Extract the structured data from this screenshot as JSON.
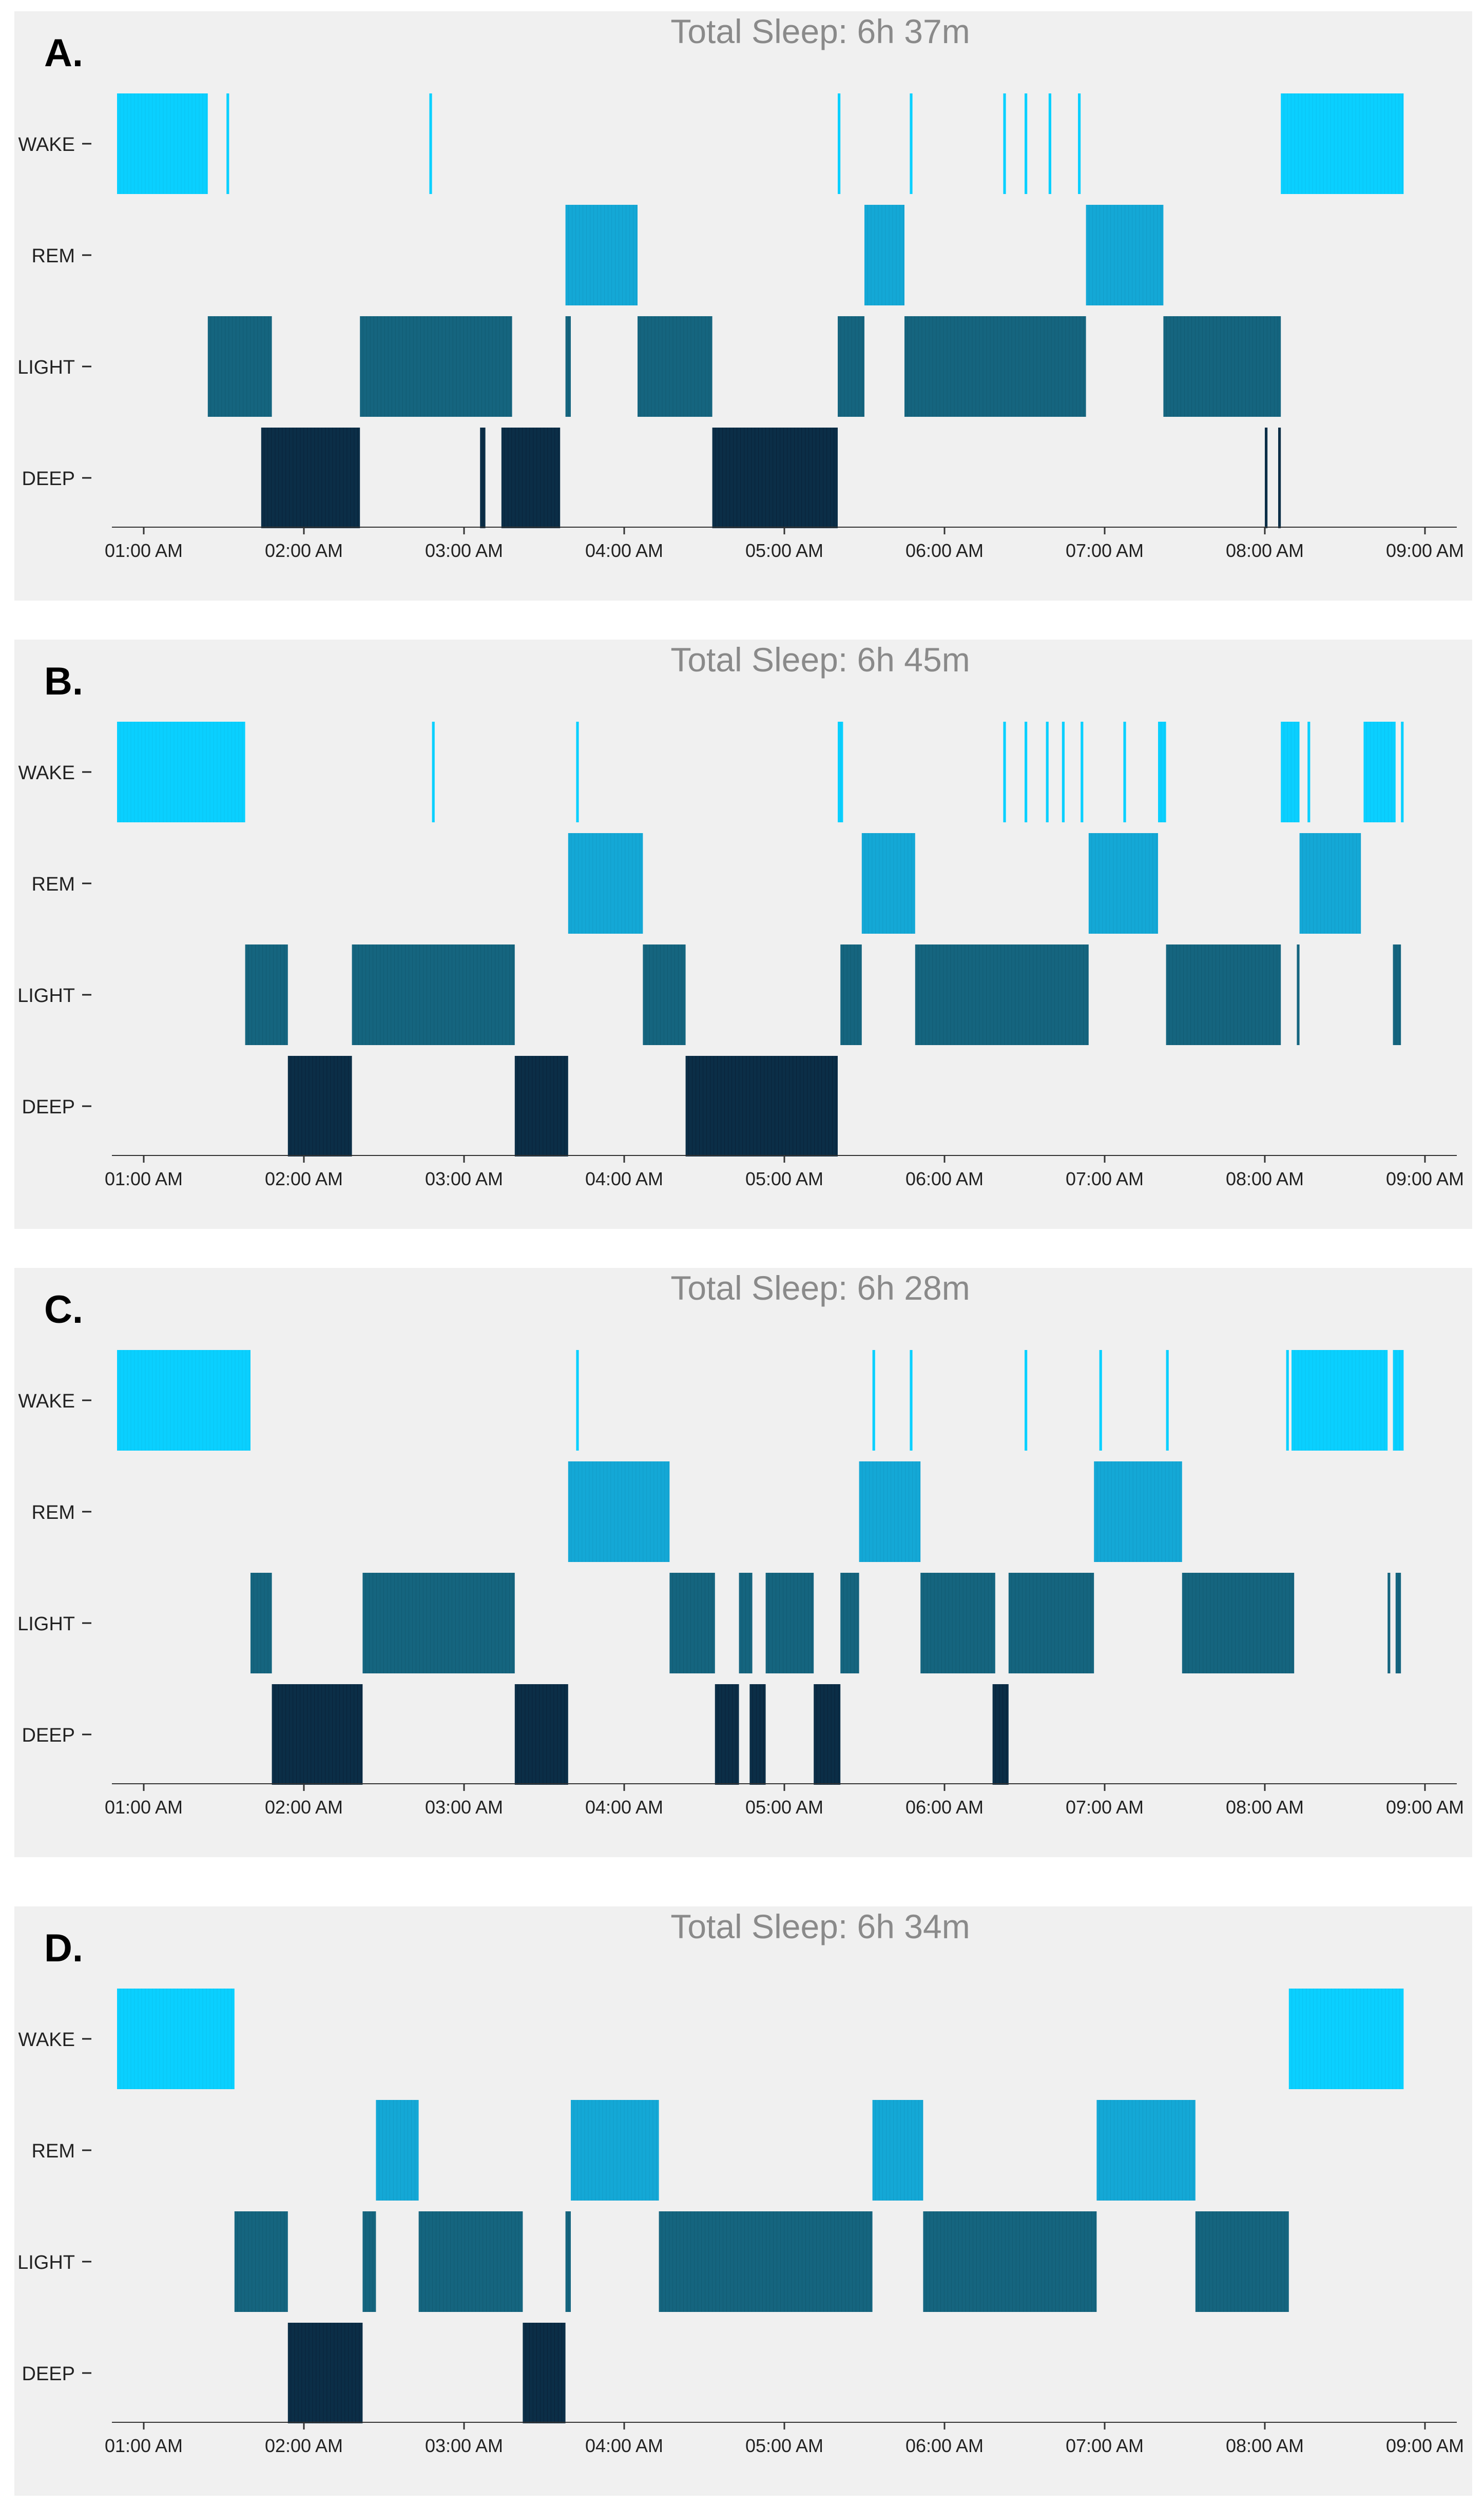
{
  "chart_data": [
    {
      "type": "sleep-hypnogram",
      "panel_label": "A.",
      "title": "Total Sleep: 6h 37m",
      "stages": [
        "WAKE",
        "REM",
        "LIGHT",
        "DEEP"
      ],
      "xticks": [
        "01:00 AM",
        "02:00 AM",
        "03:00 AM",
        "04:00 AM",
        "05:00 AM",
        "06:00 AM",
        "07:00 AM",
        "08:00 AM",
        "09:00 AM"
      ],
      "xlim": [
        "00:50",
        "09:10"
      ],
      "stage_colors": {
        "WAKE": "#0ad0ff",
        "REM": "#14a8d6",
        "LIGHT": "#15657f",
        "DEEP": "#0b2e47"
      },
      "segments": [
        {
          "stage": "WAKE",
          "start": "00:50",
          "end": "01:24"
        },
        {
          "stage": "WAKE",
          "start": "01:31",
          "end": "01:32"
        },
        {
          "stage": "WAKE",
          "start": "02:47",
          "end": "02:48"
        },
        {
          "stage": "WAKE",
          "start": "05:20",
          "end": "05:21"
        },
        {
          "stage": "WAKE",
          "start": "05:47",
          "end": "05:48"
        },
        {
          "stage": "WAKE",
          "start": "06:22",
          "end": "06:23"
        },
        {
          "stage": "WAKE",
          "start": "06:30",
          "end": "06:31"
        },
        {
          "stage": "WAKE",
          "start": "06:39",
          "end": "06:40"
        },
        {
          "stage": "WAKE",
          "start": "06:50",
          "end": "06:51"
        },
        {
          "stage": "WAKE",
          "start": "08:06",
          "end": "08:52"
        },
        {
          "stage": "LIGHT",
          "start": "01:24",
          "end": "01:48"
        },
        {
          "stage": "DEEP",
          "start": "01:44",
          "end": "02:21"
        },
        {
          "stage": "LIGHT",
          "start": "02:21",
          "end": "03:18"
        },
        {
          "stage": "DEEP",
          "start": "03:06",
          "end": "03:08"
        },
        {
          "stage": "DEEP",
          "start": "03:14",
          "end": "03:36"
        },
        {
          "stage": "LIGHT",
          "start": "03:38",
          "end": "03:40"
        },
        {
          "stage": "REM",
          "start": "03:38",
          "end": "04:05"
        },
        {
          "stage": "LIGHT",
          "start": "04:05",
          "end": "04:33"
        },
        {
          "stage": "DEEP",
          "start": "04:33",
          "end": "05:20"
        },
        {
          "stage": "LIGHT",
          "start": "05:20",
          "end": "05:30"
        },
        {
          "stage": "REM",
          "start": "05:30",
          "end": "05:45"
        },
        {
          "stage": "LIGHT",
          "start": "05:45",
          "end": "06:53"
        },
        {
          "stage": "REM",
          "start": "06:53",
          "end": "07:22"
        },
        {
          "stage": "LIGHT",
          "start": "07:22",
          "end": "08:06"
        },
        {
          "stage": "DEEP",
          "start": "08:00",
          "end": "08:01"
        },
        {
          "stage": "DEEP",
          "start": "08:05",
          "end": "08:06"
        }
      ]
    },
    {
      "type": "sleep-hypnogram",
      "panel_label": "B.",
      "title": "Total Sleep: 6h 45m",
      "stages": [
        "WAKE",
        "REM",
        "LIGHT",
        "DEEP"
      ],
      "xticks": [
        "01:00 AM",
        "02:00 AM",
        "03:00 AM",
        "04:00 AM",
        "05:00 AM",
        "06:00 AM",
        "07:00 AM",
        "08:00 AM",
        "09:00 AM"
      ],
      "xlim": [
        "00:50",
        "09:10"
      ],
      "stage_colors": {
        "WAKE": "#0ad0ff",
        "REM": "#14a8d6",
        "LIGHT": "#15657f",
        "DEEP": "#0b2e47"
      },
      "segments": [
        {
          "stage": "WAKE",
          "start": "00:50",
          "end": "01:38"
        },
        {
          "stage": "WAKE",
          "start": "02:48",
          "end": "02:49"
        },
        {
          "stage": "WAKE",
          "start": "03:42",
          "end": "03:43"
        },
        {
          "stage": "WAKE",
          "start": "05:20",
          "end": "05:22"
        },
        {
          "stage": "WAKE",
          "start": "06:22",
          "end": "06:23"
        },
        {
          "stage": "WAKE",
          "start": "06:30",
          "end": "06:31"
        },
        {
          "stage": "WAKE",
          "start": "06:38",
          "end": "06:39"
        },
        {
          "stage": "WAKE",
          "start": "06:44",
          "end": "06:45"
        },
        {
          "stage": "WAKE",
          "start": "06:51",
          "end": "06:52"
        },
        {
          "stage": "WAKE",
          "start": "07:07",
          "end": "07:08"
        },
        {
          "stage": "WAKE",
          "start": "07:20",
          "end": "07:23"
        },
        {
          "stage": "WAKE",
          "start": "08:06",
          "end": "08:13"
        },
        {
          "stage": "WAKE",
          "start": "08:16",
          "end": "08:17"
        },
        {
          "stage": "WAKE",
          "start": "08:37",
          "end": "08:49"
        },
        {
          "stage": "WAKE",
          "start": "08:51",
          "end": "08:52"
        },
        {
          "stage": "LIGHT",
          "start": "01:38",
          "end": "01:54"
        },
        {
          "stage": "DEEP",
          "start": "01:54",
          "end": "02:18"
        },
        {
          "stage": "LIGHT",
          "start": "02:18",
          "end": "03:19"
        },
        {
          "stage": "DEEP",
          "start": "03:19",
          "end": "03:39"
        },
        {
          "stage": "REM",
          "start": "03:39",
          "end": "04:07"
        },
        {
          "stage": "LIGHT",
          "start": "04:07",
          "end": "04:23"
        },
        {
          "stage": "DEEP",
          "start": "04:23",
          "end": "05:20"
        },
        {
          "stage": "LIGHT",
          "start": "05:21",
          "end": "05:29"
        },
        {
          "stage": "REM",
          "start": "05:29",
          "end": "05:49"
        },
        {
          "stage": "LIGHT",
          "start": "05:49",
          "end": "06:54"
        },
        {
          "stage": "REM",
          "start": "06:54",
          "end": "07:20"
        },
        {
          "stage": "LIGHT",
          "start": "07:23",
          "end": "08:06"
        },
        {
          "stage": "LIGHT",
          "start": "08:12",
          "end": "08:13"
        },
        {
          "stage": "REM",
          "start": "08:13",
          "end": "08:36"
        },
        {
          "stage": "LIGHT",
          "start": "08:48",
          "end": "08:51"
        }
      ]
    },
    {
      "type": "sleep-hypnogram",
      "panel_label": "C.",
      "title": "Total Sleep: 6h 28m",
      "stages": [
        "WAKE",
        "REM",
        "LIGHT",
        "DEEP"
      ],
      "xticks": [
        "01:00 AM",
        "02:00 AM",
        "03:00 AM",
        "04:00 AM",
        "05:00 AM",
        "06:00 AM",
        "07:00 AM",
        "08:00 AM",
        "09:00 AM"
      ],
      "xlim": [
        "00:50",
        "09:10"
      ],
      "stage_colors": {
        "WAKE": "#0ad0ff",
        "REM": "#14a8d6",
        "LIGHT": "#15657f",
        "DEEP": "#0b2e47"
      },
      "segments": [
        {
          "stage": "WAKE",
          "start": "00:50",
          "end": "01:40"
        },
        {
          "stage": "WAKE",
          "start": "03:42",
          "end": "03:43"
        },
        {
          "stage": "WAKE",
          "start": "05:33",
          "end": "05:34"
        },
        {
          "stage": "WAKE",
          "start": "05:47",
          "end": "05:48"
        },
        {
          "stage": "WAKE",
          "start": "06:30",
          "end": "06:31"
        },
        {
          "stage": "WAKE",
          "start": "06:58",
          "end": "06:59"
        },
        {
          "stage": "WAKE",
          "start": "07:23",
          "end": "07:24"
        },
        {
          "stage": "WAKE",
          "start": "08:08",
          "end": "08:09"
        },
        {
          "stage": "WAKE",
          "start": "08:10",
          "end": "08:46"
        },
        {
          "stage": "WAKE",
          "start": "08:48",
          "end": "08:52"
        },
        {
          "stage": "LIGHT",
          "start": "01:40",
          "end": "01:48"
        },
        {
          "stage": "DEEP",
          "start": "01:48",
          "end": "02:22"
        },
        {
          "stage": "LIGHT",
          "start": "02:22",
          "end": "03:19"
        },
        {
          "stage": "DEEP",
          "start": "03:19",
          "end": "03:39"
        },
        {
          "stage": "REM",
          "start": "03:39",
          "end": "04:17"
        },
        {
          "stage": "LIGHT",
          "start": "04:17",
          "end": "04:34"
        },
        {
          "stage": "DEEP",
          "start": "04:34",
          "end": "04:43"
        },
        {
          "stage": "LIGHT",
          "start": "04:43",
          "end": "04:48"
        },
        {
          "stage": "DEEP",
          "start": "04:47",
          "end": "04:53"
        },
        {
          "stage": "LIGHT",
          "start": "04:53",
          "end": "05:11"
        },
        {
          "stage": "DEEP",
          "start": "05:11",
          "end": "05:21"
        },
        {
          "stage": "LIGHT",
          "start": "05:21",
          "end": "05:28"
        },
        {
          "stage": "REM",
          "start": "05:28",
          "end": "05:51"
        },
        {
          "stage": "LIGHT",
          "start": "05:51",
          "end": "06:19"
        },
        {
          "stage": "DEEP",
          "start": "06:18",
          "end": "06:24"
        },
        {
          "stage": "LIGHT",
          "start": "06:24",
          "end": "06:56"
        },
        {
          "stage": "REM",
          "start": "06:56",
          "end": "07:29"
        },
        {
          "stage": "LIGHT",
          "start": "07:29",
          "end": "08:11"
        },
        {
          "stage": "LIGHT",
          "start": "08:46",
          "end": "08:47"
        },
        {
          "stage": "LIGHT",
          "start": "08:49",
          "end": "08:51"
        }
      ]
    },
    {
      "type": "sleep-hypnogram",
      "panel_label": "D.",
      "title": "Total Sleep: 6h 34m",
      "stages": [
        "WAKE",
        "REM",
        "LIGHT",
        "DEEP"
      ],
      "xticks": [
        "01:00 AM",
        "02:00 AM",
        "03:00 AM",
        "04:00 AM",
        "05:00 AM",
        "06:00 AM",
        "07:00 AM",
        "08:00 AM",
        "09:00 AM"
      ],
      "xlim": [
        "00:50",
        "09:10"
      ],
      "stage_colors": {
        "WAKE": "#0ad0ff",
        "REM": "#14a8d6",
        "LIGHT": "#15657f",
        "DEEP": "#0b2e47"
      },
      "segments": [
        {
          "stage": "WAKE",
          "start": "00:50",
          "end": "01:34"
        },
        {
          "stage": "LIGHT",
          "start": "01:34",
          "end": "01:54"
        },
        {
          "stage": "DEEP",
          "start": "01:54",
          "end": "02:22"
        },
        {
          "stage": "LIGHT",
          "start": "02:22",
          "end": "02:27"
        },
        {
          "stage": "REM",
          "start": "02:27",
          "end": "02:43"
        },
        {
          "stage": "LIGHT",
          "start": "02:43",
          "end": "03:22"
        },
        {
          "stage": "DEEP",
          "start": "03:22",
          "end": "03:38"
        },
        {
          "stage": "LIGHT",
          "start": "03:38",
          "end": "03:40"
        },
        {
          "stage": "REM",
          "start": "03:40",
          "end": "04:13"
        },
        {
          "stage": "LIGHT",
          "start": "04:13",
          "end": "05:33"
        },
        {
          "stage": "REM",
          "start": "05:33",
          "end": "05:52"
        },
        {
          "stage": "LIGHT",
          "start": "05:52",
          "end": "06:57"
        },
        {
          "stage": "REM",
          "start": "06:57",
          "end": "07:34"
        },
        {
          "stage": "LIGHT",
          "start": "07:34",
          "end": "08:09"
        },
        {
          "stage": "WAKE",
          "start": "08:09",
          "end": "08:52"
        }
      ]
    }
  ]
}
